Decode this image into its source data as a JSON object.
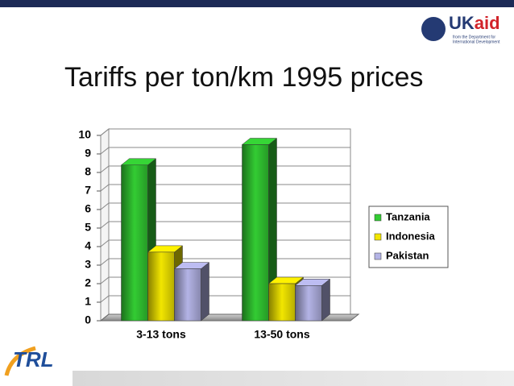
{
  "logos": {
    "uk": "UK",
    "aid": "aid",
    "dfid_line1": "from the Department for",
    "dfid_line2": "International Development",
    "trl": "TRL"
  },
  "chart_data": {
    "type": "bar3d",
    "title": "Tariffs per ton/km 1995 prices",
    "categories": [
      "3-13 tons",
      "13-50 tons"
    ],
    "series": [
      {
        "name": "Tanzania",
        "color": "#33cc33",
        "values": [
          8.4,
          9.5
        ]
      },
      {
        "name": "Indonesia",
        "color": "#f2e600",
        "values": [
          3.7,
          2.0
        ]
      },
      {
        "name": "Pakistan",
        "color": "#b4b4e6",
        "values": [
          2.8,
          1.9
        ]
      }
    ],
    "ylim": [
      0,
      10
    ],
    "yticks": [
      0,
      1,
      2,
      3,
      4,
      5,
      6,
      7,
      8,
      9,
      10
    ],
    "grid": true,
    "legend": "right"
  }
}
